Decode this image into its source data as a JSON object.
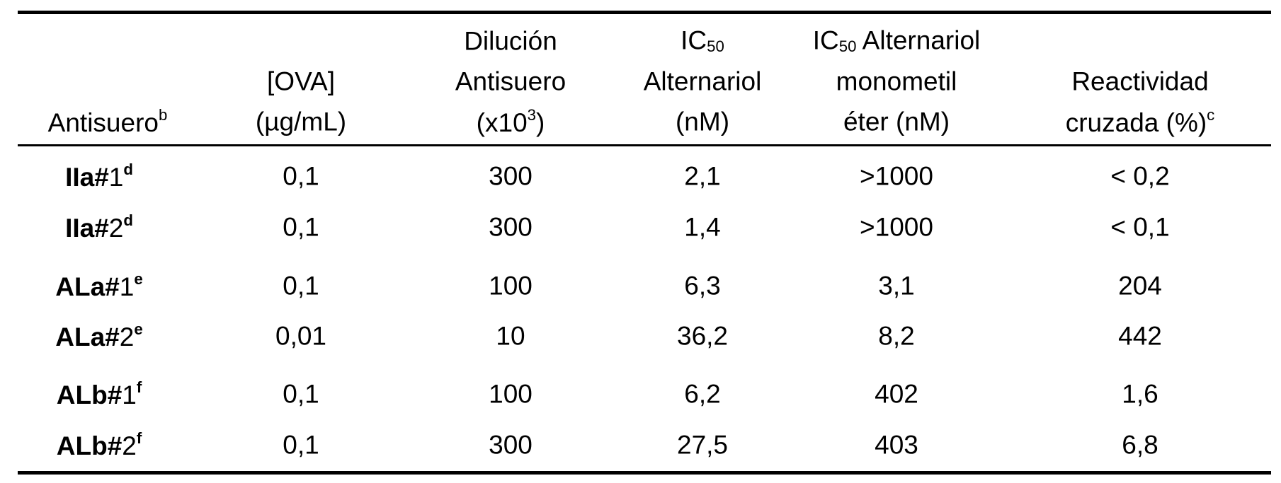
{
  "table": {
    "header": [
      [
        [
          {
            "text": "Antisuero"
          },
          {
            "text": "b",
            "style": "sup"
          }
        ]
      ],
      [
        [
          {
            "text": "[OVA]"
          }
        ],
        [
          {
            "text": "(µg/mL)"
          }
        ]
      ],
      [
        [
          {
            "text": "Dilución"
          }
        ],
        [
          {
            "text": "Antisuero"
          }
        ],
        [
          {
            "text": "(x10"
          },
          {
            "text": "3",
            "style": "sup"
          },
          {
            "text": ")"
          }
        ]
      ],
      [
        [
          {
            "text": "IC"
          },
          {
            "text": "50",
            "style": "sub"
          }
        ],
        [
          {
            "text": "Alternariol"
          }
        ],
        [
          {
            "text": "(nM)"
          }
        ]
      ],
      [
        [
          {
            "text": "IC"
          },
          {
            "text": "50",
            "style": "sub"
          },
          {
            "text": " Alternariol"
          }
        ],
        [
          {
            "text": "monometil"
          }
        ],
        [
          {
            "text": "éter (nM)"
          }
        ]
      ],
      [
        [
          {
            "text": "Reactividad"
          }
        ],
        [
          {
            "text": "cruzada (%)"
          },
          {
            "text": "c",
            "style": "sup"
          }
        ]
      ]
    ],
    "rows": [
      [
        [
          {
            "text": "IIa#",
            "style": "bold"
          },
          {
            "text": "1"
          },
          {
            "text": "d",
            "style": "sup-bold"
          }
        ],
        "0,1",
        "300",
        "2,1",
        ">1000",
        "< 0,2"
      ],
      [
        [
          {
            "text": "IIa#",
            "style": "bold"
          },
          {
            "text": "2"
          },
          {
            "text": "d",
            "style": "sup-bold"
          }
        ],
        "0,1",
        "300",
        "1,4",
        ">1000",
        "< 0,1"
      ],
      [
        [
          {
            "text": "ALa#",
            "style": "bold"
          },
          {
            "text": "1"
          },
          {
            "text": "e",
            "style": "sup-bold"
          }
        ],
        "0,1",
        "100",
        "6,3",
        "3,1",
        "204"
      ],
      [
        [
          {
            "text": "ALa#",
            "style": "bold"
          },
          {
            "text": "2"
          },
          {
            "text": "e",
            "style": "sup-bold"
          }
        ],
        "0,01",
        "10",
        "36,2",
        "8,2",
        "442"
      ],
      [
        [
          {
            "text": "ALb#",
            "style": "bold"
          },
          {
            "text": "1"
          },
          {
            "text": "f",
            "style": "sup-bold"
          }
        ],
        "0,1",
        "100",
        "6,2",
        "402",
        "1,6"
      ],
      [
        [
          {
            "text": "ALb#",
            "style": "bold"
          },
          {
            "text": "2"
          },
          {
            "text": "f",
            "style": "sup-bold"
          }
        ],
        "0,1",
        "300",
        "27,5",
        "403",
        "6,8"
      ]
    ]
  }
}
